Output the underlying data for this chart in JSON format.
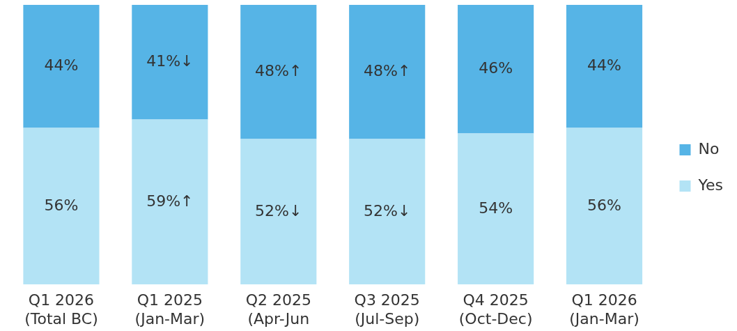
{
  "chart_data": {
    "type": "bar",
    "stacked": true,
    "legend": "right",
    "grid": false,
    "tick_labels": "x",
    "categories": [
      "Q1 2026\n(Total BC)",
      "Q1 2025\n(Jan-Mar)",
      "Q2 2025\n(Apr-Jun",
      "Q3 2025\n(Jul-Sep)",
      "Q4 2025\n(Oct-Dec)",
      "Q1 2026\n(Jan-Mar)"
    ],
    "series": [
      {
        "name": "Yes",
        "color": "#b3e3f5",
        "values": [
          56,
          59,
          52,
          52,
          54,
          56
        ],
        "value_labels": [
          "56%",
          "59%↑",
          "52%↓",
          "52%↓",
          "54%",
          "56%"
        ]
      },
      {
        "name": "No",
        "color": "#56b4e6",
        "values": [
          44,
          41,
          48,
          48,
          46,
          44
        ],
        "value_labels": [
          "44%",
          "41%↓",
          "48%↑",
          "48%↑",
          "46%",
          "44%"
        ]
      }
    ]
  }
}
